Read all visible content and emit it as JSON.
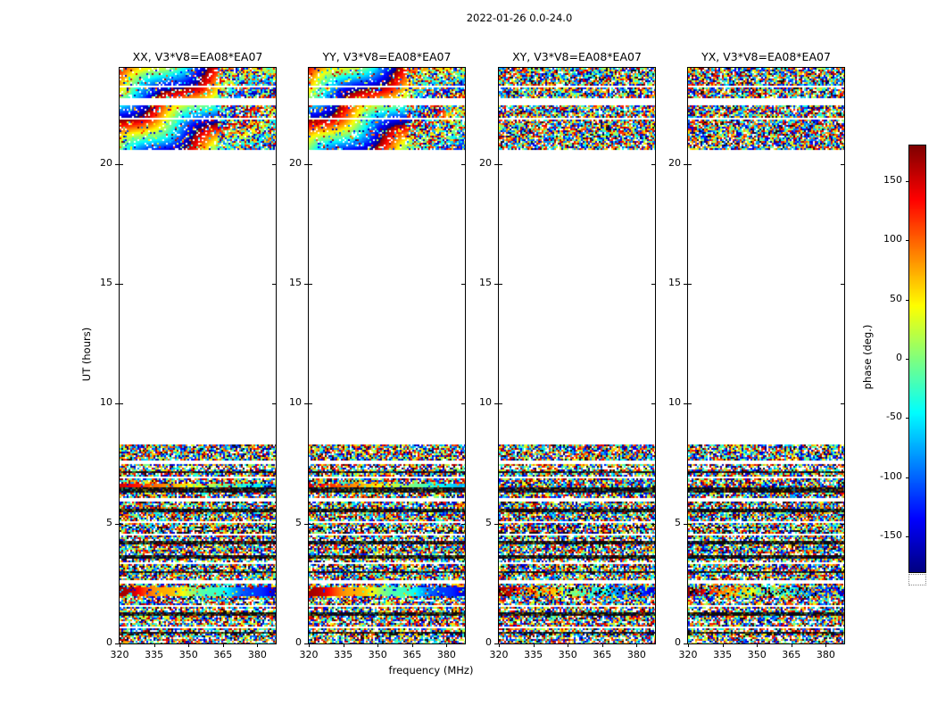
{
  "chart_data": {
    "type": "heatmap",
    "title": "2022-01-26 0.0-24.0",
    "xlabel": "frequency (MHz)",
    "ylabel": "UT (hours)",
    "xlim": [
      320,
      388
    ],
    "ylim": [
      0,
      24
    ],
    "xticks": [
      320,
      335,
      350,
      365,
      380
    ],
    "yticks": [
      0,
      5,
      10,
      15,
      20
    ],
    "panels": [
      {
        "pol": "XX",
        "title": "XX, V3*V8=EA08*EA07",
        "smooth_phase": true
      },
      {
        "pol": "YY",
        "title": "YY, V3*V8=EA08*EA07",
        "smooth_phase": true
      },
      {
        "pol": "XY",
        "title": "XY, V3*V8=EA08*EA07",
        "smooth_phase": false
      },
      {
        "pol": "YX",
        "title": "YX, V3*V8=EA08*EA07",
        "smooth_phase": false
      }
    ],
    "colorbar": {
      "label": "phase (deg.)",
      "ticks": [
        150,
        100,
        50,
        0,
        -50,
        -100,
        -150
      ],
      "vmin": -180,
      "vmax": 180,
      "colormap": "jet"
    },
    "bands": {
      "description": "UT-hour ranges containing visibility phase data; everything else is blank (no data)",
      "upper": [
        20.55,
        24.0
      ],
      "lower": [
        0.0,
        8.3
      ],
      "white_gaps": [
        [
          23.15,
          23.25
        ],
        [
          22.42,
          22.72
        ],
        [
          21.85,
          21.95
        ],
        [
          7.5,
          7.66
        ],
        [
          6.85,
          6.95
        ],
        [
          5.95,
          6.05
        ],
        [
          5.0,
          5.12
        ],
        [
          4.52,
          4.6
        ],
        [
          3.28,
          3.38
        ],
        [
          2.52,
          2.62
        ],
        [
          1.52,
          1.6
        ],
        [
          0.62,
          0.7
        ]
      ],
      "dark_rows": [
        [
          7.1,
          7.18
        ],
        [
          6.28,
          6.48
        ],
        [
          5.5,
          5.6
        ],
        [
          4.15,
          4.3
        ],
        [
          3.55,
          3.68
        ],
        [
          2.92,
          3.0
        ],
        [
          1.15,
          1.28
        ],
        [
          0.42,
          0.5
        ]
      ],
      "smooth_stripe": [
        2.0,
        2.38
      ],
      "smooth_stripe2": [
        6.5,
        6.68
      ]
    }
  }
}
